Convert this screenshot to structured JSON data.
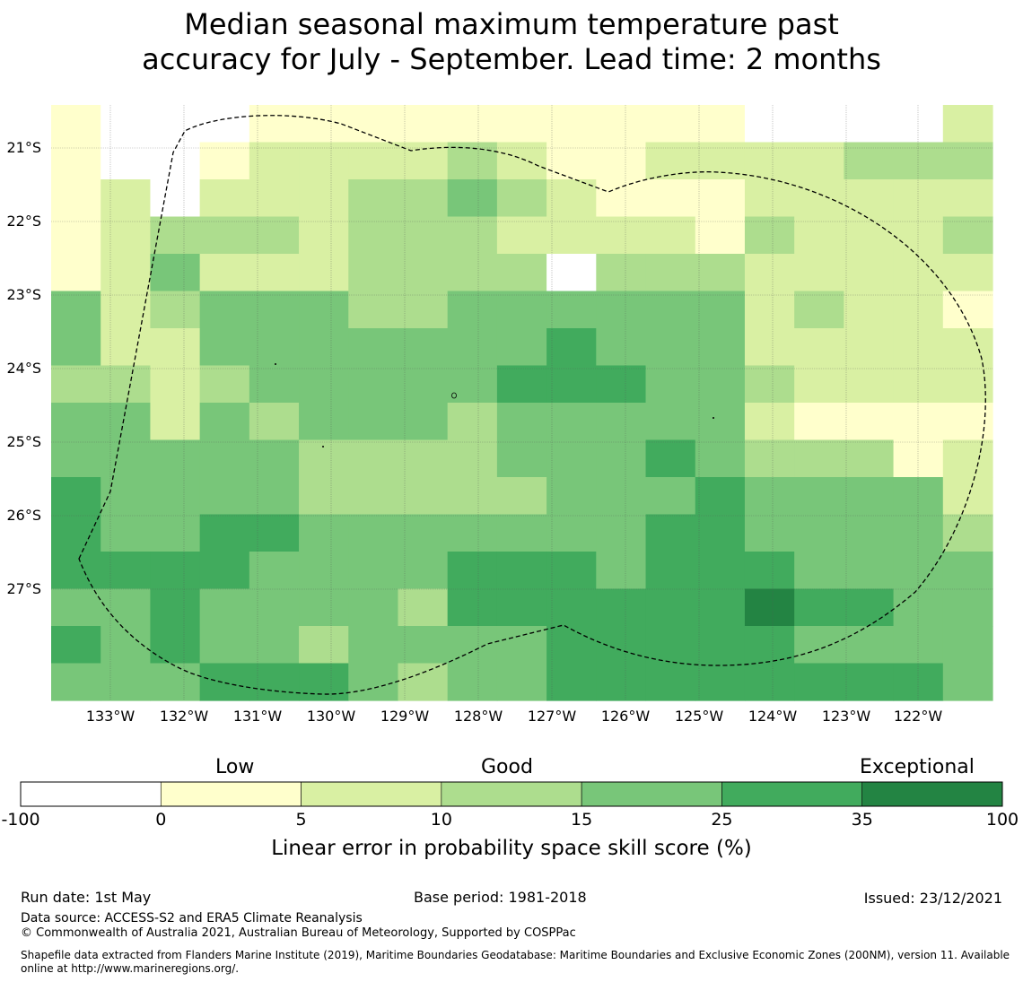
{
  "title_line1": "Median seasonal maximum temperature past",
  "title_line2": "accuracy for July - September. Lead time: 2 months",
  "map": {
    "lat_labels": [
      "21°S",
      "22°S",
      "23°S",
      "24°S",
      "25°S",
      "26°S",
      "27°S"
    ],
    "lon_labels": [
      "133°W",
      "132°W",
      "131°W",
      "130°W",
      "129°W",
      "128°W",
      "127°W",
      "126°W",
      "125°W",
      "124°W",
      "123°W",
      "122°W"
    ],
    "grid_cells": [
      [
        2,
        1,
        1,
        1,
        2,
        2,
        2,
        2,
        2,
        2,
        2,
        2,
        2,
        2,
        1,
        1,
        1,
        1,
        3
      ],
      [
        2,
        1,
        1,
        2,
        3,
        3,
        3,
        3,
        4,
        3,
        2,
        2,
        3,
        3,
        3,
        3,
        4,
        4,
        4
      ],
      [
        2,
        3,
        1,
        3,
        3,
        3,
        4,
        4,
        5,
        4,
        3,
        2,
        2,
        2,
        3,
        3,
        3,
        3,
        3
      ],
      [
        2,
        3,
        4,
        4,
        4,
        3,
        4,
        4,
        4,
        3,
        3,
        3,
        3,
        2,
        4,
        3,
        3,
        3,
        4
      ],
      [
        2,
        3,
        5,
        3,
        3,
        3,
        4,
        4,
        4,
        4,
        1,
        4,
        4,
        4,
        3,
        3,
        3,
        3,
        3
      ],
      [
        5,
        3,
        4,
        5,
        5,
        5,
        4,
        4,
        5,
        5,
        5,
        5,
        5,
        5,
        3,
        4,
        3,
        3,
        2
      ],
      [
        5,
        3,
        3,
        5,
        5,
        5,
        5,
        5,
        5,
        5,
        6,
        5,
        5,
        5,
        3,
        3,
        3,
        3,
        3
      ],
      [
        4,
        4,
        3,
        4,
        5,
        5,
        5,
        5,
        5,
        6,
        6,
        6,
        5,
        5,
        4,
        3,
        3,
        3,
        3
      ],
      [
        5,
        5,
        3,
        5,
        4,
        5,
        5,
        5,
        4,
        5,
        5,
        5,
        5,
        5,
        3,
        2,
        2,
        2,
        2
      ],
      [
        5,
        5,
        5,
        5,
        5,
        4,
        4,
        4,
        4,
        5,
        5,
        5,
        6,
        5,
        4,
        4,
        4,
        2,
        3
      ],
      [
        6,
        5,
        5,
        5,
        5,
        4,
        4,
        4,
        4,
        4,
        5,
        5,
        5,
        6,
        5,
        5,
        5,
        5,
        3
      ],
      [
        6,
        5,
        5,
        6,
        6,
        5,
        5,
        5,
        5,
        5,
        5,
        5,
        6,
        6,
        5,
        5,
        5,
        5,
        4
      ],
      [
        6,
        6,
        6,
        6,
        5,
        5,
        5,
        5,
        6,
        6,
        6,
        5,
        6,
        6,
        6,
        5,
        5,
        5,
        5
      ],
      [
        5,
        5,
        6,
        5,
        5,
        5,
        5,
        4,
        6,
        6,
        6,
        6,
        6,
        6,
        7,
        6,
        6,
        5,
        5
      ],
      [
        6,
        5,
        6,
        5,
        5,
        4,
        5,
        5,
        5,
        5,
        6,
        6,
        6,
        6,
        6,
        5,
        5,
        5,
        5
      ],
      [
        5,
        5,
        5,
        6,
        6,
        6,
        5,
        4,
        5,
        5,
        6,
        6,
        6,
        6,
        6,
        6,
        6,
        6,
        5
      ]
    ]
  },
  "colorbar": {
    "categories": [
      "Low",
      "Good",
      "Exceptional"
    ],
    "ticks": [
      "-100",
      "0",
      "5",
      "10",
      "15",
      "25",
      "35",
      "100"
    ],
    "colors": [
      "#ffffff",
      "#ffffcc",
      "#d9f0a3",
      "#addd8e",
      "#78c679",
      "#41ab5d",
      "#238443"
    ],
    "title": "Linear error in probability space skill score (%)"
  },
  "footer": {
    "run_date": "Run date: 1st May",
    "base_period": "Base period: 1981-2018",
    "issued": "Issued: 23/12/2021",
    "data_source": "Data source: ACCESS-S2 and ERA5 Climate Reanalysis",
    "copyright": "© Commonwealth of Australia 2021, Australian Bureau of Meteorology, Supported by COSPPac",
    "shapefile_line1": "Shapefile data extracted from Flanders Marine Institute (2019), Maritime Boundaries Geodatabase: Maritime Boundaries and Exclusive Economic Zones (200NM), version 11. Available",
    "shapefile_line2": "online at http://www.marineregions.org/."
  }
}
